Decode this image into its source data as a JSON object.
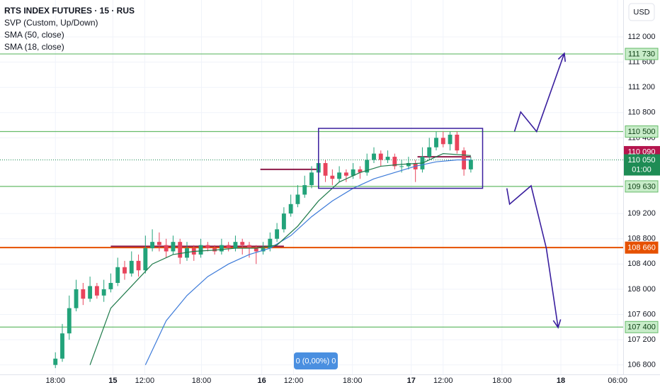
{
  "chart_data": {
    "type": "candlestick",
    "title": "RTS INDEX FUTURES · 15 · RUS",
    "indicators": [
      "SVP (Custom, Up/Down)"
    ],
    "currency": "USD",
    "status": "0 (0,00%) 0",
    "up_color": "#22a37a",
    "down_color": "#e8445c",
    "xlim": [
      -8,
      82
    ],
    "ylim": [
      106650,
      112585
    ],
    "grid": true,
    "xticks": [
      {
        "value": 0,
        "label": "18:00"
      },
      {
        "value": 8.3,
        "label": "15"
      },
      {
        "value": 12.9,
        "label": "12:00"
      },
      {
        "value": 21.1,
        "label": "18:00"
      },
      {
        "value": 29.8,
        "label": "16"
      },
      {
        "value": 34.4,
        "label": "12:00"
      },
      {
        "value": 42.9,
        "label": "18:00"
      },
      {
        "value": 51.4,
        "label": "17"
      },
      {
        "value": 56,
        "label": "12:00"
      },
      {
        "value": 64.5,
        "label": "18:00"
      },
      {
        "value": 73,
        "label": "18"
      },
      {
        "value": 81.2,
        "label": "06:00"
      }
    ],
    "yticks": [
      {
        "value": 112000,
        "label": "112 000"
      },
      {
        "value": 111600,
        "label": "111 600"
      },
      {
        "value": 111200,
        "label": "111 200"
      },
      {
        "value": 110800,
        "label": "110 800"
      },
      {
        "value": 110400,
        "label": "110 400"
      },
      {
        "value": 109200,
        "label": "109 200"
      },
      {
        "value": 108800,
        "label": "108 800"
      },
      {
        "value": 108400,
        "label": "108 400"
      },
      {
        "value": 108000,
        "label": "108 000"
      },
      {
        "value": 107600,
        "label": "107 600"
      },
      {
        "value": 107200,
        "label": "107 200"
      },
      {
        "value": 106800,
        "label": "106 800"
      }
    ],
    "open": [
      106800,
      106900,
      107300,
      107700,
      108000,
      107850,
      108050,
      107900,
      108000,
      108100,
      108350,
      108250,
      108450,
      108300,
      108650,
      108750,
      108700,
      108600,
      108750,
      108500,
      108650,
      108550,
      108700,
      108650,
      108600,
      108700,
      108650,
      108750,
      108700,
      108650,
      108600,
      108650,
      108800,
      108950,
      109200,
      109350,
      109500,
      109650,
      109850,
      110000,
      109800,
      109750,
      109850,
      109800,
      109900,
      109850,
      110050,
      110150,
      110050,
      110100,
      109950,
      109950,
      110000,
      109900,
      110100,
      110250,
      110400,
      110300,
      110450,
      110200,
      109900
    ],
    "high": [
      107000,
      107450,
      107900,
      108150,
      108100,
      108200,
      108100,
      108150,
      108250,
      108500,
      108450,
      108600,
      108550,
      108850,
      108950,
      108900,
      108800,
      108850,
      108800,
      108750,
      108700,
      108800,
      108750,
      108700,
      108800,
      108750,
      108850,
      108800,
      108750,
      108700,
      108750,
      108900,
      109050,
      109300,
      109500,
      109650,
      109800,
      109950,
      110150,
      110050,
      109900,
      109950,
      109900,
      110000,
      109950,
      110150,
      110250,
      110200,
      110200,
      110150,
      110050,
      110100,
      110050,
      110250,
      110400,
      110500,
      110500,
      110500,
      110500,
      110250,
      110100
    ],
    "low": [
      106750,
      106850,
      107200,
      107650,
      107750,
      107800,
      107850,
      107800,
      107950,
      108050,
      108150,
      108200,
      108200,
      108250,
      108600,
      108600,
      108500,
      108550,
      108400,
      108450,
      108450,
      108500,
      108600,
      108550,
      108550,
      108600,
      108600,
      108550,
      108500,
      108400,
      108550,
      108600,
      108750,
      108900,
      109150,
      109300,
      109450,
      109600,
      109800,
      109700,
      109650,
      109700,
      109700,
      109750,
      109750,
      109800,
      110000,
      109950,
      110000,
      109900,
      109850,
      109900,
      109700,
      109850,
      110050,
      110200,
      110250,
      110200,
      110150,
      109800,
      109850
    ],
    "close": [
      106900,
      107300,
      107700,
      108000,
      107850,
      108050,
      107900,
      108000,
      108100,
      108350,
      108250,
      108450,
      108300,
      108650,
      108750,
      108700,
      108600,
      108750,
      108500,
      108650,
      108550,
      108700,
      108650,
      108600,
      108700,
      108650,
      108750,
      108700,
      108650,
      108600,
      108650,
      108800,
      108950,
      109200,
      109350,
      109500,
      109650,
      109850,
      110000,
      109800,
      109750,
      109850,
      109800,
      109900,
      109850,
      110050,
      110150,
      110050,
      110100,
      109950,
      109950,
      110000,
      109900,
      110100,
      110250,
      110400,
      110300,
      110450,
      110200,
      109900,
      110050
    ],
    "series": [
      {
        "name": "SMA (50, close)",
        "color": "#3d7bd9",
        "x": [
          13,
          16,
          19,
          22,
          25,
          28,
          31,
          34,
          37,
          40,
          43,
          46,
          49,
          52,
          55,
          58,
          60
        ],
        "values": [
          106800,
          107500,
          107900,
          108200,
          108400,
          108550,
          108650,
          108850,
          109150,
          109400,
          109600,
          109750,
          109850,
          109950,
          110020,
          110050,
          110050
        ]
      },
      {
        "name": "SMA (18, close)",
        "color": "#1e7a4a",
        "x": [
          5,
          8,
          11,
          14,
          17,
          20,
          23,
          26,
          29,
          32,
          35,
          38,
          41,
          44,
          47,
          50,
          53,
          56,
          60
        ],
        "values": [
          106800,
          107700,
          108050,
          108400,
          108550,
          108600,
          108620,
          108650,
          108650,
          108700,
          109000,
          109400,
          109700,
          109850,
          109950,
          109980,
          110000,
          110150,
          110120
        ]
      }
    ],
    "svp_lines": [
      {
        "price": 108680,
        "x": [
          8,
          33
        ],
        "color": "#8e1b4a"
      },
      {
        "price": 109900,
        "x": [
          29.6,
          38
        ],
        "color": "#8e1b4a"
      },
      {
        "price": 110100,
        "x": [
          52.3,
          60
        ],
        "color": "#8e1b4a"
      }
    ],
    "levels": [
      {
        "value": 111730,
        "label": "111 730",
        "color": "#66bb6a"
      },
      {
        "value": 110500,
        "label": "110 500",
        "color": "#66bb6a"
      },
      {
        "value": 109630,
        "label": "109 630",
        "color": "#66bb6a"
      },
      {
        "value": 108660,
        "label": "108 660",
        "color": "#e65100"
      },
      {
        "value": 107400,
        "label": "107 400",
        "color": "#66bb6a"
      }
    ],
    "price_labels": [
      {
        "value": 110090,
        "label": "110 090",
        "color": "#b5164e"
      },
      {
        "value": 110050,
        "label": "110 050",
        "countdown": "01:00",
        "color": "#1e8c55"
      }
    ],
    "drawings": [
      {
        "type": "rectangle",
        "color": "#3a1f9e",
        "x": [
          38,
          61.7
        ],
        "y": [
          110550,
          109600
        ]
      },
      {
        "type": "arrow",
        "color": "#3a1f9e",
        "x": [
          66.3,
          67.2,
          69.5,
          73.5
        ],
        "y": [
          110500,
          110810,
          110500,
          111740
        ]
      },
      {
        "type": "arrow",
        "color": "#3a1f9e",
        "x": [
          65.2,
          65.6,
          68.7,
          70.9,
          72.6
        ],
        "y": [
          109600,
          109350,
          109640,
          108650,
          107393
        ]
      }
    ]
  }
}
